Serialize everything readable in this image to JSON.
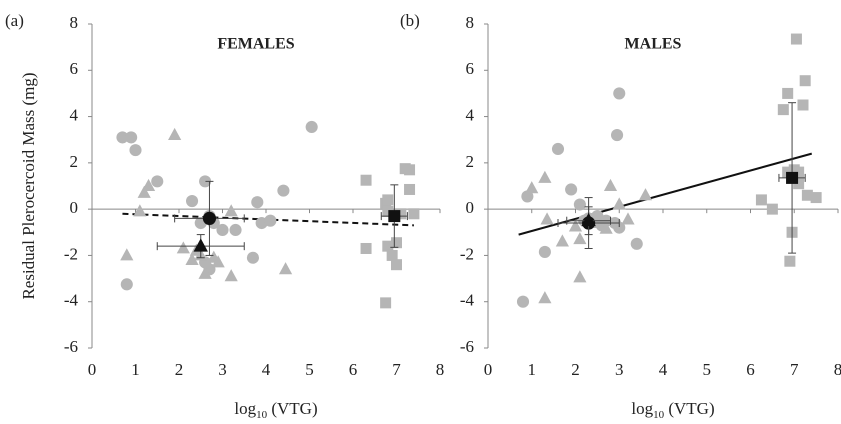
{
  "chart_data": [
    {
      "type": "scatter",
      "panel_label": "(a)",
      "title": "FEMALES",
      "y_label": "Residual Plerocercoid Mass (mg)",
      "x_label": {
        "main": "log",
        "sub": "10",
        "rest": " (VTG)"
      },
      "xlim": [
        0,
        8
      ],
      "ylim": [
        -6,
        8
      ],
      "xticks": [
        0,
        1,
        2,
        3,
        4,
        5,
        6,
        7,
        8
      ],
      "yticks": [
        -6,
        -4,
        -2,
        0,
        2,
        4,
        6,
        8
      ],
      "series": [
        {
          "marker": "circle",
          "color": "#b5b5b5",
          "x": [
            0.7,
            0.9,
            1.0,
            1.5,
            0.8,
            2.3,
            2.6,
            2.5,
            2.7,
            2.8,
            3.0,
            3.3,
            2.7,
            3.7,
            3.8,
            3.9,
            4.1,
            4.4,
            5.05,
            2.6
          ],
          "y": [
            3.1,
            3.1,
            2.55,
            1.2,
            -3.25,
            0.35,
            1.2,
            -0.6,
            -0.3,
            -0.6,
            -0.9,
            -0.9,
            -2.6,
            -2.1,
            0.3,
            -0.6,
            -0.5,
            0.8,
            3.55,
            -2.3
          ]
        },
        {
          "marker": "triangle",
          "color": "#b5b5b5",
          "x": [
            0.8,
            1.1,
            1.2,
            1.3,
            1.9,
            2.1,
            2.3,
            2.4,
            2.5,
            2.6,
            2.8,
            3.2,
            3.2,
            4.45,
            2.9
          ],
          "y": [
            -2.0,
            -0.1,
            0.7,
            1.0,
            3.2,
            -1.7,
            -2.2,
            -1.8,
            -2.0,
            -2.8,
            -2.1,
            -0.1,
            -2.9,
            -2.6,
            -2.3
          ]
        },
        {
          "marker": "square",
          "color": "#b5b5b5",
          "x": [
            6.3,
            6.3,
            6.75,
            6.75,
            6.8,
            6.8,
            6.9,
            7.0,
            7.0,
            7.1,
            7.2,
            7.3,
            7.3,
            7.4,
            6.8
          ],
          "y": [
            1.25,
            -1.7,
            -4.05,
            0.25,
            0.4,
            -1.6,
            -2.0,
            -1.45,
            -2.4,
            -0.2,
            1.75,
            1.7,
            0.85,
            -0.2,
            -0.1
          ]
        }
      ],
      "means": {
        "marker": [
          "circle",
          "triangle",
          "square"
        ],
        "color": "#111111",
        "x": [
          2.7,
          2.5,
          6.95
        ],
        "y": [
          -0.4,
          -1.6,
          -0.3
        ],
        "xerr": [
          0.8,
          1.0,
          0.3
        ],
        "yerr": [
          1.6,
          0.5,
          1.35
        ]
      },
      "trend": {
        "x": [
          0.7,
          7.4
        ],
        "y": [
          -0.2,
          -0.7
        ],
        "dashed": true,
        "color": "#111111"
      }
    },
    {
      "type": "scatter",
      "panel_label": "(b)",
      "title": "MALES",
      "x_label": {
        "main": "log",
        "sub": "10",
        "rest": " (VTG)"
      },
      "xlim": [
        0,
        8
      ],
      "ylim": [
        -6,
        8
      ],
      "xticks": [
        0,
        1,
        2,
        3,
        4,
        5,
        6,
        7,
        8
      ],
      "yticks": [
        -6,
        -4,
        -2,
        0,
        2,
        4,
        6,
        8
      ],
      "series": [
        {
          "marker": "circle",
          "color": "#b5b5b5",
          "x": [
            0.8,
            0.9,
            1.3,
            1.6,
            1.9,
            2.1,
            2.2,
            2.3,
            2.5,
            2.7,
            2.9,
            2.95,
            3.0,
            3.0,
            3.4,
            2.6
          ],
          "y": [
            -4.0,
            0.55,
            -1.85,
            2.6,
            0.85,
            0.2,
            -0.5,
            -0.4,
            -0.3,
            -0.5,
            -0.6,
            3.2,
            5.0,
            -0.8,
            -1.5,
            -0.7
          ]
        },
        {
          "marker": "triangle",
          "color": "#b5b5b5",
          "x": [
            1.0,
            1.3,
            1.35,
            1.3,
            1.7,
            2.0,
            2.1,
            2.4,
            2.8,
            3.0,
            3.2,
            3.6,
            2.1,
            2.7
          ],
          "y": [
            0.9,
            1.35,
            -0.45,
            -3.85,
            -1.4,
            -0.75,
            -2.95,
            -0.6,
            1.0,
            0.2,
            -0.45,
            0.6,
            -1.3,
            -0.85
          ]
        },
        {
          "marker": "square",
          "color": "#b5b5b5",
          "x": [
            6.25,
            6.5,
            6.75,
            6.85,
            6.9,
            6.95,
            7.0,
            7.05,
            7.1,
            7.1,
            7.2,
            7.25,
            7.3,
            7.5,
            6.85
          ],
          "y": [
            0.4,
            0.0,
            4.3,
            5.0,
            -2.25,
            -1.0,
            1.7,
            7.35,
            1.6,
            1.1,
            4.5,
            5.55,
            0.6,
            0.5,
            1.6
          ]
        }
      ],
      "means": {
        "marker": [
          "circle",
          "triangle",
          "square"
        ],
        "color": "#111111",
        "x": [
          2.3,
          2.3,
          6.95
        ],
        "y": [
          -0.6,
          -0.5,
          1.35
        ],
        "xerr": [
          0.7,
          0.5,
          0.3
        ],
        "yerr": [
          1.1,
          0.6,
          3.25
        ]
      },
      "trend": {
        "x": [
          0.7,
          7.4
        ],
        "y": [
          -1.1,
          2.4
        ],
        "dashed": false,
        "color": "#111111"
      }
    }
  ]
}
